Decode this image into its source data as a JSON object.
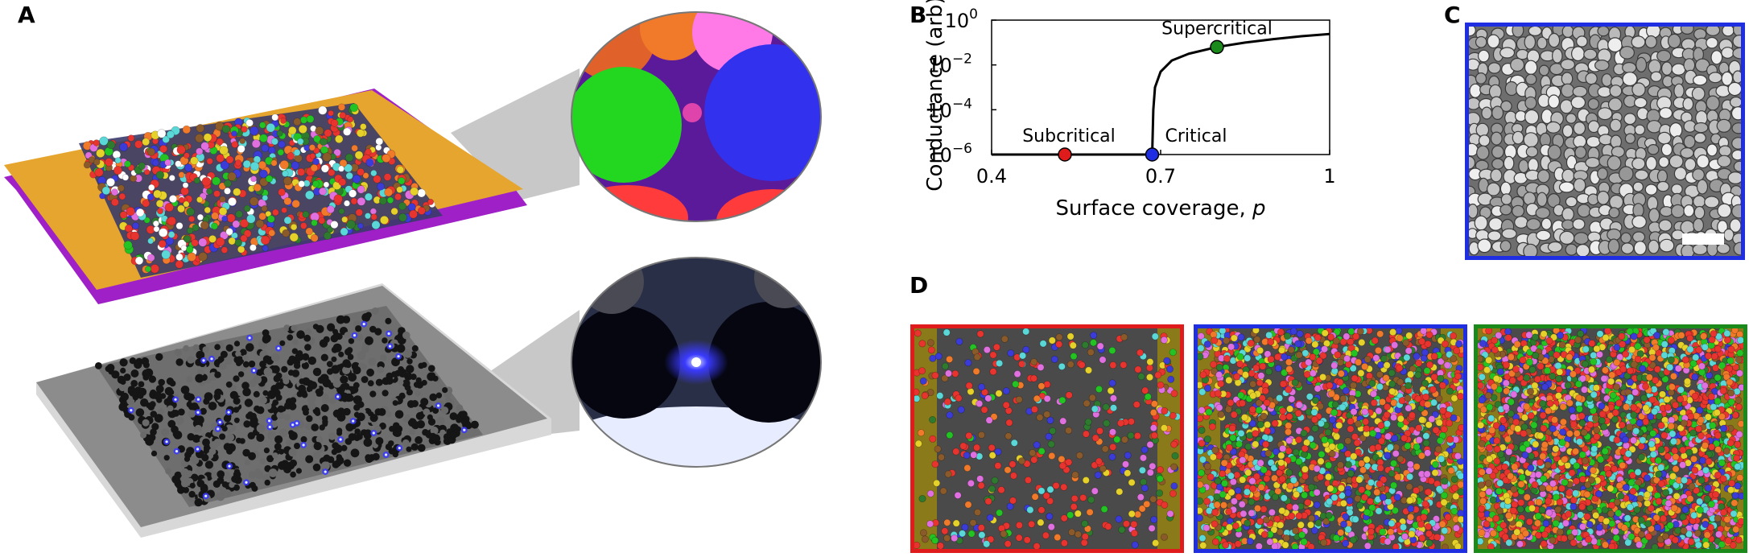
{
  "panels": {
    "a": "A",
    "b": "B",
    "c": "C",
    "d": "D"
  },
  "colors": {
    "subcritical": "#e01b1b",
    "critical": "#1f2ee0",
    "supercritical": "#1a8a1a",
    "gold_substrate": "#e6a52e",
    "purple_base": "#b41fd6",
    "gray_substrate": "#8a8a8a",
    "glow": "#3a3aff"
  },
  "chart_data": {
    "type": "line",
    "xlabel": "Surface coverage, p",
    "ylabel": "Conductance (arb)",
    "xlim": [
      0.4,
      1.0
    ],
    "ylog": true,
    "ylim_exponents": [
      -6,
      0
    ],
    "xticks": [
      "0.4",
      "0.7",
      "1"
    ],
    "yticks": [
      {
        "base": "10",
        "exp": "0"
      },
      {
        "base": "10",
        "exp": "−2"
      },
      {
        "base": "10",
        "exp": "−4"
      },
      {
        "base": "10",
        "exp": "−6"
      }
    ],
    "curve": {
      "x": [
        0.4,
        0.5,
        0.6,
        0.66,
        0.685,
        0.686,
        0.687,
        0.69,
        0.7,
        0.72,
        0.75,
        0.8,
        0.85,
        0.9,
        0.95,
        1.0
      ],
      "y_exponent": [
        -6,
        -6,
        -6,
        -6,
        -6,
        -5.0,
        -4.0,
        -3.0,
        -2.3,
        -1.8,
        -1.5,
        -1.2,
        -1.0,
        -0.85,
        -0.72,
        -0.62
      ]
    },
    "points": [
      {
        "label": "Subcritical",
        "x": 0.53,
        "y_exponent": -6,
        "color": "#e01b1b"
      },
      {
        "label": "Critical",
        "x": 0.685,
        "y_exponent": -6,
        "color": "#1f2ee0"
      },
      {
        "label": "Supercritical",
        "x": 0.8,
        "y_exponent": -1.2,
        "color": "#1a8a1a"
      }
    ]
  }
}
